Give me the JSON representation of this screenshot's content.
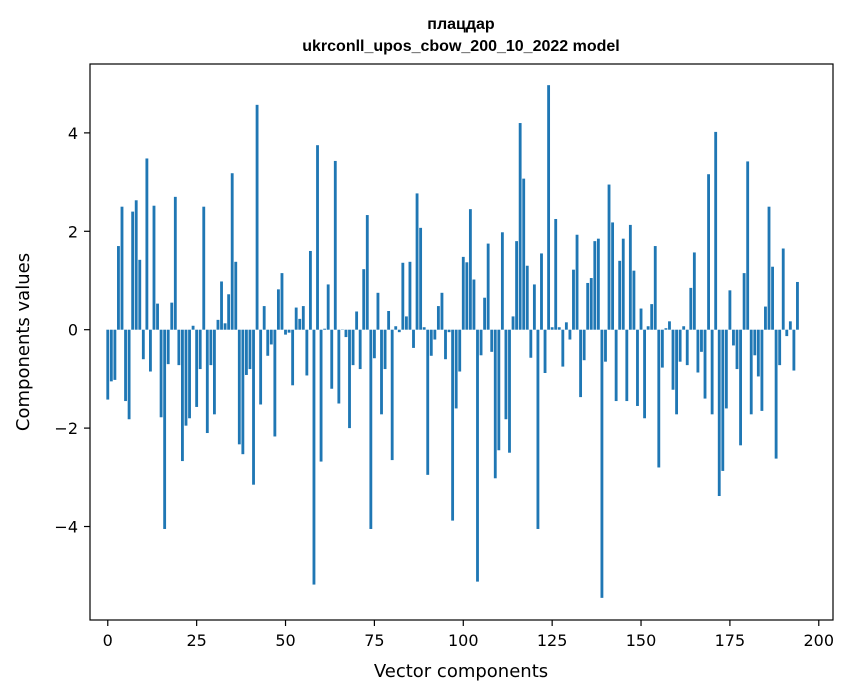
{
  "chart_data": {
    "type": "bar",
    "title_line1": "плацдар",
    "title_line2": "ukrconll_upos_cbow_200_10_2022 model",
    "xlabel": "Vector components",
    "ylabel": "Components values",
    "xlim": [
      -5,
      204
    ],
    "ylim": [
      -5.9,
      5.4
    ],
    "x_ticks": [
      0,
      25,
      50,
      75,
      100,
      125,
      150,
      175,
      200
    ],
    "x_tick_labels": [
      "0",
      "25",
      "50",
      "75",
      "100",
      "125",
      "150",
      "175",
      "200"
    ],
    "y_ticks": [
      -4,
      -2,
      0,
      2,
      4
    ],
    "y_tick_labels": [
      "−4",
      "−2",
      "0",
      "2",
      "4"
    ],
    "bar_color": "#1f77b4",
    "grid": false,
    "values": [
      -1.42,
      -1.05,
      -1.02,
      1.7,
      2.5,
      -1.45,
      -1.82,
      2.4,
      2.63,
      1.42,
      -0.6,
      3.48,
      -0.85,
      2.52,
      0.53,
      -1.78,
      -4.05,
      -0.7,
      0.55,
      2.7,
      -0.72,
      -2.67,
      -1.95,
      -1.8,
      0.08,
      -1.57,
      -0.8,
      2.5,
      -2.1,
      -0.72,
      -1.72,
      0.2,
      0.98,
      0.13,
      0.72,
      3.18,
      1.38,
      -2.33,
      -2.53,
      -0.92,
      -0.8,
      -3.15,
      4.57,
      -1.52,
      0.48,
      -0.53,
      -0.3,
      -2.17,
      0.82,
      1.15,
      -0.1,
      -0.06,
      -1.13,
      0.45,
      0.22,
      0.48,
      -0.93,
      1.6,
      -5.18,
      3.75,
      -2.68,
      0.02,
      0.92,
      -1.2,
      3.43,
      -1.5,
      0.0,
      -0.15,
      -2.0,
      -0.72,
      0.37,
      -0.8,
      1.23,
      2.33,
      -4.05,
      -0.58,
      0.75,
      -1.72,
      -0.8,
      0.38,
      -2.65,
      0.07,
      -0.05,
      1.36,
      0.27,
      1.38,
      -0.37,
      2.77,
      2.07,
      0.05,
      -2.95,
      -0.53,
      -0.2,
      0.48,
      0.75,
      -0.6,
      -0.05,
      -3.88,
      -1.6,
      -0.85,
      1.48,
      1.37,
      2.45,
      1.02,
      -5.12,
      -0.52,
      0.65,
      1.75,
      -0.45,
      -3.02,
      -2.45,
      1.98,
      -1.82,
      -2.5,
      0.27,
      1.8,
      4.2,
      3.07,
      1.3,
      -0.57,
      0.92,
      -4.05,
      1.55,
      -0.88,
      4.97,
      0.05,
      2.25,
      0.05,
      -0.75,
      0.15,
      -0.2,
      1.22,
      1.93,
      -1.37,
      -0.62,
      0.95,
      1.05,
      1.8,
      1.85,
      -5.45,
      -0.65,
      2.95,
      2.18,
      -1.45,
      1.4,
      1.85,
      -1.45,
      2.13,
      1.2,
      -1.55,
      0.43,
      -1.8,
      0.07,
      0.52,
      1.7,
      -2.8,
      -0.77,
      0.03,
      0.17,
      -1.22,
      -1.72,
      -0.65,
      0.07,
      -0.72,
      0.85,
      1.57,
      -0.87,
      -0.45,
      -1.4,
      3.16,
      -1.72,
      4.02,
      -3.38,
      -2.87,
      -1.6,
      0.8,
      -0.32,
      -0.8,
      -2.35,
      1.15,
      3.42,
      -1.72,
      -0.52,
      -0.95,
      -1.65,
      0.47,
      2.5,
      1.28,
      -2.62,
      -0.72,
      1.65,
      -0.13,
      0.17,
      -0.83,
      0.97
    ]
  }
}
